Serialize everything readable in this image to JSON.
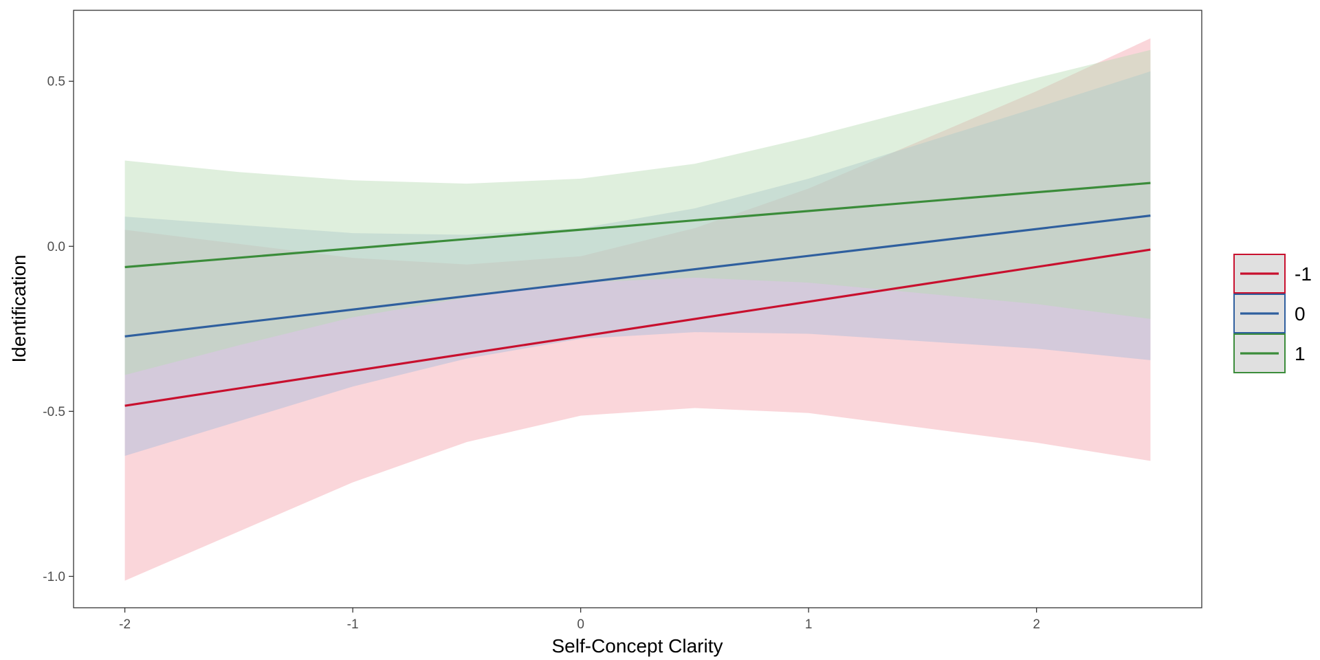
{
  "chart_data": {
    "type": "line",
    "xlabel": "Self-Concept Clarity",
    "ylabel": "Identification",
    "xlim": [
      -2.225,
      2.725
    ],
    "ylim": [
      -1.095,
      0.715
    ],
    "x_ticks": [
      -2,
      -1,
      0,
      1,
      2
    ],
    "x_tick_labels": [
      "-2",
      "-1",
      "0",
      "1",
      "2"
    ],
    "y_ticks": [
      -1.0,
      -0.5,
      0.0,
      0.5
    ],
    "y_tick_labels": [
      "-1.0",
      "-0.5",
      "0.0",
      "0.5"
    ],
    "grid": false,
    "legend_position": "right",
    "series": [
      {
        "name": "-1",
        "color": "#c8102e",
        "band_color": "#f4a3ad",
        "x": [
          -2,
          2.5
        ],
        "y": [
          -0.483,
          -0.01
        ],
        "band": {
          "x": [
            -2,
            -1,
            -0.5,
            0,
            0.5,
            1,
            2,
            2.5
          ],
          "upper": [
            0.05,
            -0.035,
            -0.055,
            -0.03,
            0.055,
            0.175,
            0.47,
            0.63
          ],
          "lower": [
            -1.013,
            -0.715,
            -0.593,
            -0.513,
            -0.49,
            -0.505,
            -0.595,
            -0.65
          ]
        }
      },
      {
        "name": "0",
        "color": "#2f5f9e",
        "band_color": "#a6bddb",
        "x": [
          -2,
          2.5
        ],
        "y": [
          -0.273,
          0.093
        ],
        "band": {
          "x": [
            -2,
            -1,
            -0.5,
            0,
            0.5,
            1,
            2,
            2.5
          ],
          "upper": [
            0.09,
            0.04,
            0.035,
            0.055,
            0.115,
            0.205,
            0.42,
            0.53
          ],
          "lower": [
            -0.635,
            -0.425,
            -0.34,
            -0.28,
            -0.26,
            -0.265,
            -0.31,
            -0.345
          ]
        }
      },
      {
        "name": "1",
        "color": "#3b8c3a",
        "band_color": "#b7dcb3",
        "x": [
          -2,
          2.5
        ],
        "y": [
          -0.063,
          0.192
        ],
        "band": {
          "x": [
            -2,
            -1.5,
            -1,
            -0.5,
            0,
            0.5,
            1,
            2,
            2.5
          ],
          "upper": [
            0.26,
            0.225,
            0.2,
            0.19,
            0.205,
            0.25,
            0.33,
            0.51,
            0.595
          ],
          "lower": [
            -0.39,
            -0.3,
            -0.215,
            -0.155,
            -0.11,
            -0.095,
            -0.11,
            -0.175,
            -0.22
          ]
        }
      }
    ]
  }
}
